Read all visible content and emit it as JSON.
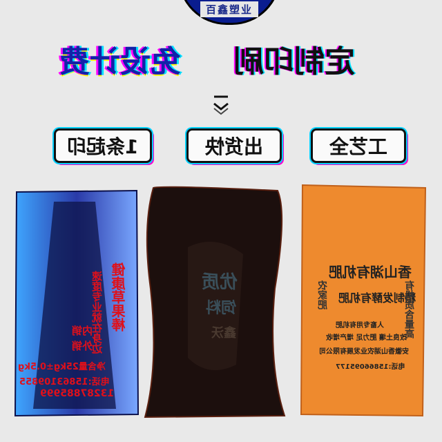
{
  "brand": {
    "name": "百鑫塑业"
  },
  "headline": {
    "part_blue": "免设计费",
    "part_black": "定制印刷"
  },
  "features": [
    {
      "label": "1条起印"
    },
    {
      "label": "出货快"
    },
    {
      "label": "工艺全"
    }
  ],
  "bags": [
    {
      "color": "#2a3aa8",
      "title": "健康草果棒",
      "subtitle": "速度专业就在身边",
      "option_a": "内销",
      "option_b": "外销",
      "weight": "净含量25kg±0.5kg",
      "phone_a": "电话:15863109855",
      "phone_b": "13287885999"
    },
    {
      "color": "#1c0f0d",
      "title": "优质",
      "subtitle": "饲料",
      "name": "鑫沃"
    },
    {
      "color": "#ee8a2e",
      "title": "香山湖有机肥",
      "subtitle": "精制发酵有机肥",
      "side_left": "农家肥",
      "side_right": "有机质含量高",
      "line_a": "人畜专用有机肥",
      "line_b": "改良土壤 肥力足 增产增收",
      "company": "安徽香山湖农业发展有限公司",
      "phone": "电话:15866095177"
    }
  ]
}
